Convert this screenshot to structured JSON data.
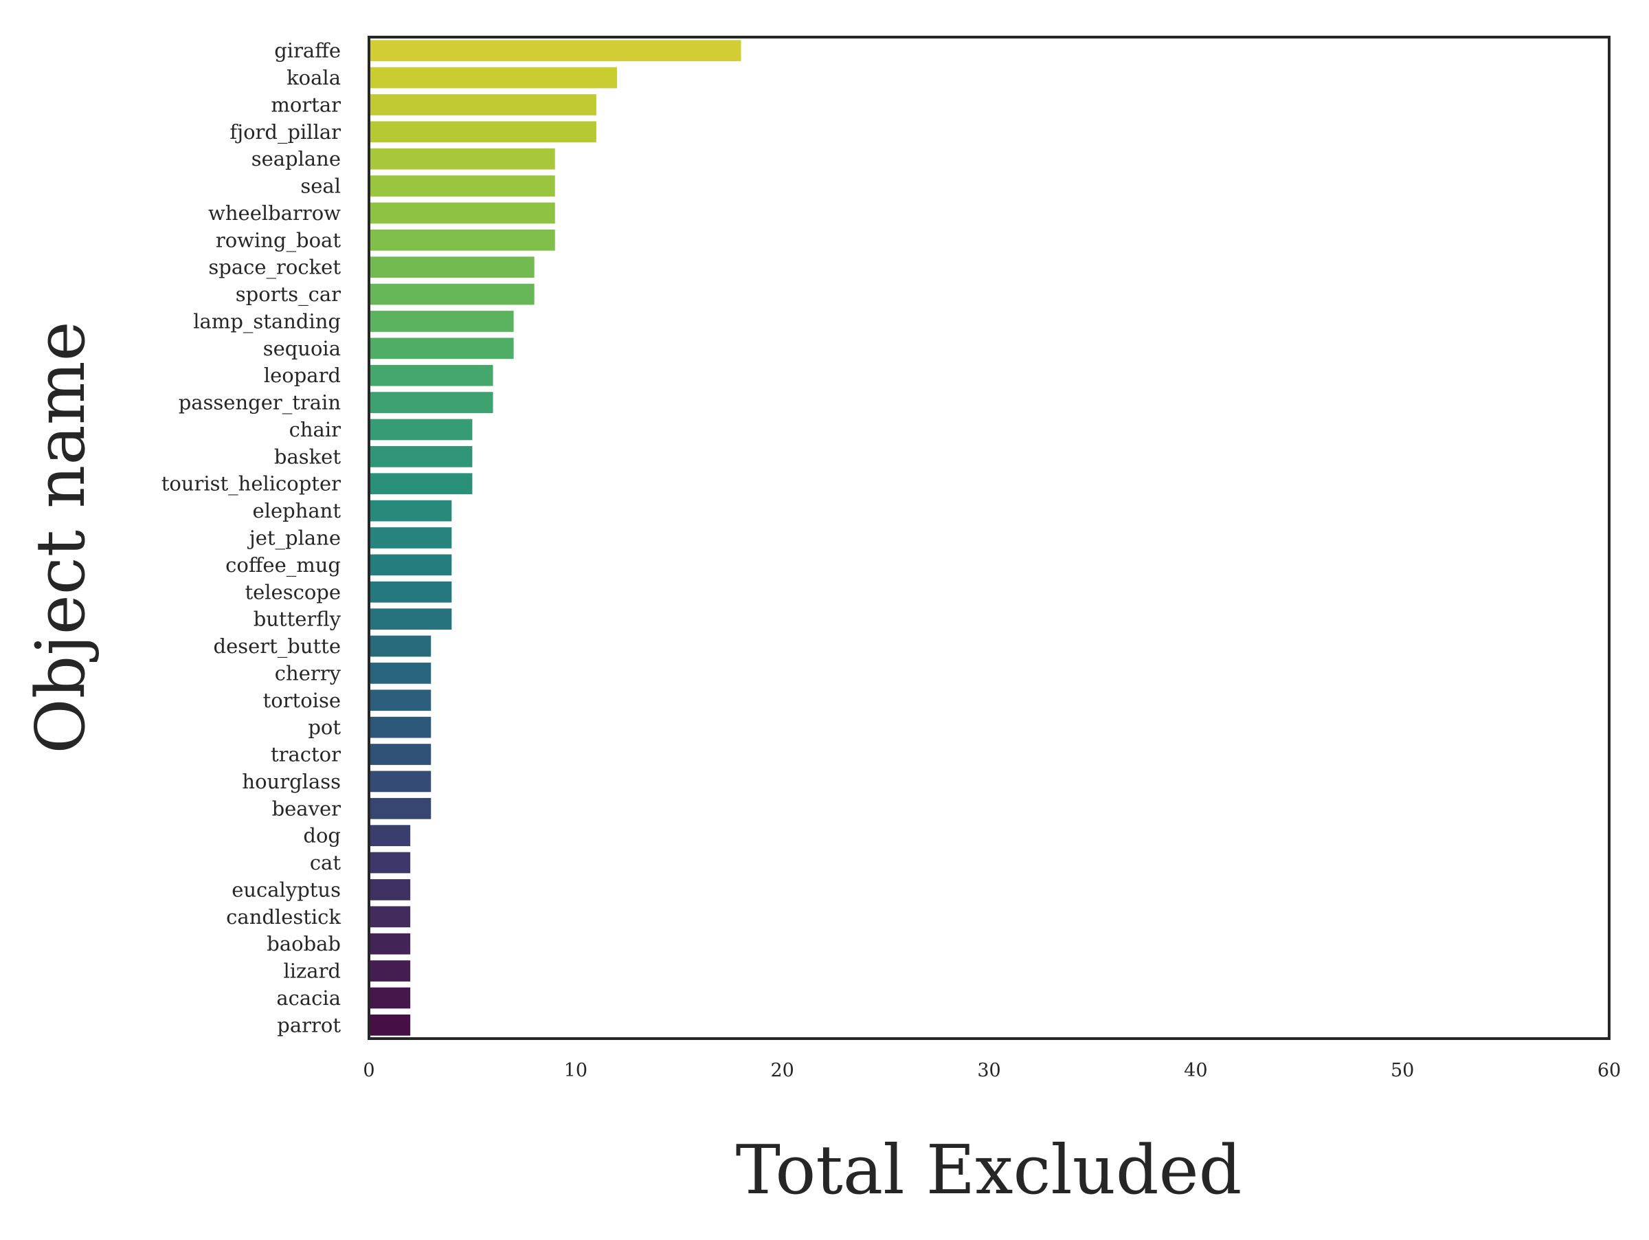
{
  "chart_data": {
    "type": "bar",
    "orientation": "horizontal",
    "title": "",
    "xlabel": "Total Excluded",
    "ylabel": "Object name",
    "xlim": [
      0,
      60
    ],
    "xticks": [
      0,
      10,
      20,
      30,
      40,
      50,
      60
    ],
    "grid": false,
    "legend": "none",
    "colormap": "viridis (reversed: top yellow, bottom purple)",
    "frame_color": "#262626",
    "categories": [
      "giraffe",
      "koala",
      "mortar",
      "fjord_pillar",
      "seaplane",
      "seal",
      "wheelbarrow",
      "rowing_boat",
      "space_rocket",
      "sports_car",
      "lamp_standing",
      "sequoia",
      "leopard",
      "passenger_train",
      "chair",
      "basket",
      "tourist_helicopter",
      "elephant",
      "jet_plane",
      "coffee_mug",
      "telescope",
      "butterfly",
      "desert_butte",
      "cherry",
      "tortoise",
      "pot",
      "tractor",
      "hourglass",
      "beaver",
      "dog",
      "cat",
      "eucalyptus",
      "candlestick",
      "baobab",
      "lizard",
      "acacia",
      "parrot"
    ],
    "values": [
      18,
      12,
      11,
      11,
      9,
      9,
      9,
      9,
      8,
      8,
      7,
      7,
      6,
      6,
      5,
      5,
      5,
      4,
      4,
      4,
      4,
      4,
      3,
      3,
      3,
      3,
      3,
      3,
      3,
      2,
      2,
      2,
      2,
      2,
      2,
      2,
      2
    ],
    "colors": [
      "#d2cd33",
      "#cacd32",
      "#c0cb33",
      "#b5c935",
      "#a8c73a",
      "#9ac53e",
      "#8dc243",
      "#80bf4a",
      "#73bb51",
      "#67b758",
      "#5bb25f",
      "#50ad66",
      "#46a76c",
      "#3ea270",
      "#369c74",
      "#309677",
      "#2b9079",
      "#288a7b",
      "#26847c",
      "#257e7d",
      "#25787d",
      "#26727d",
      "#276b7d",
      "#29657c",
      "#2b5f7b",
      "#2e5879",
      "#315277",
      "#344b75",
      "#374571",
      "#3a3e6d",
      "#3d3869",
      "#403163",
      "#422b5d",
      "#432457",
      "#441e51",
      "#45174b",
      "#461045"
    ]
  }
}
